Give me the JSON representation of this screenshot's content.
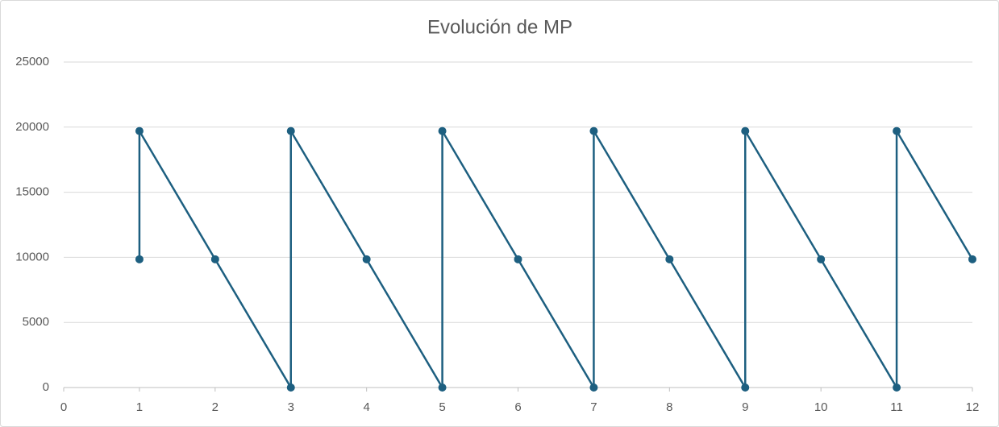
{
  "chart_data": {
    "type": "line",
    "title": "Evolución de MP",
    "x": [
      1,
      1,
      2,
      3,
      3,
      4,
      5,
      5,
      6,
      7,
      7,
      8,
      9,
      9,
      10,
      11,
      11,
      12
    ],
    "series": [
      {
        "name": "MP",
        "color": "#1d5f80",
        "values": [
          9850,
          19700,
          9850,
          0,
          19700,
          9850,
          0,
          19700,
          9850,
          0,
          19700,
          9850,
          0,
          19700,
          9850,
          0,
          19700,
          9850
        ]
      }
    ],
    "xlim": [
      0,
      12
    ],
    "xticks": [
      0,
      1,
      2,
      3,
      4,
      5,
      6,
      7,
      8,
      9,
      10,
      11,
      12
    ],
    "ylim": [
      0,
      25000
    ],
    "yticks": [
      0,
      5000,
      10000,
      15000,
      20000,
      25000
    ],
    "grid": true
  }
}
